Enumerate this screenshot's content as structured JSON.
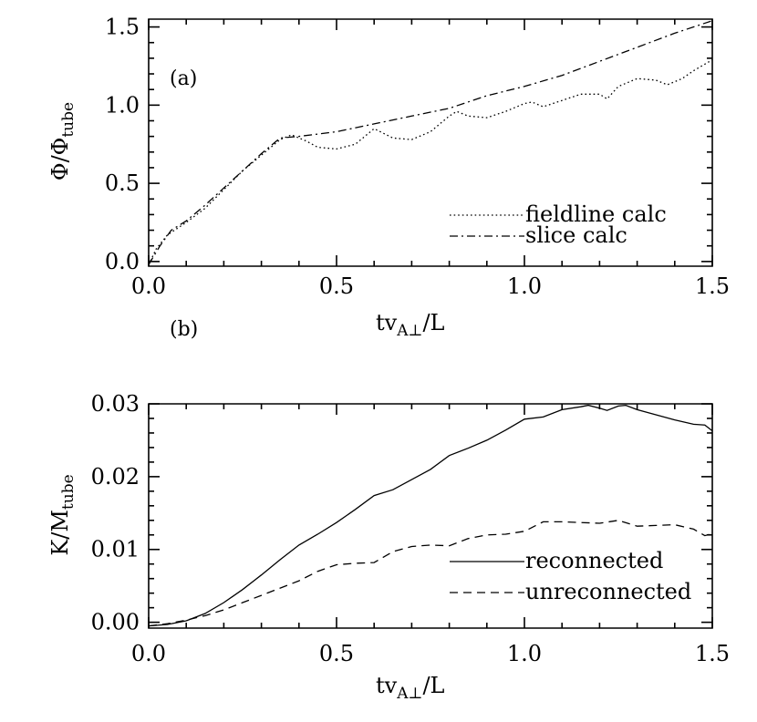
{
  "chart_data": [
    {
      "type": "line",
      "panel_label": "(a)",
      "xlabel": "tv",
      "xlabel_sub": "A⊥",
      "xlabel_tail": "/L",
      "ylabel": "Φ/Φ",
      "ylabel_sub": "tube",
      "xlim": [
        0,
        1.5
      ],
      "ylim": [
        -0.03,
        1.55
      ],
      "x_ticks": [
        "0.0",
        "0.5",
        "1.0",
        "1.5"
      ],
      "y_ticks": [
        "0.0",
        "0.5",
        "1.0",
        "1.5"
      ],
      "legend": "lower-right",
      "series": [
        {
          "name": "fieldline calc",
          "style": "dotted",
          "x": [
            0,
            0.02,
            0.05,
            0.1,
            0.15,
            0.2,
            0.25,
            0.3,
            0.35,
            0.38,
            0.42,
            0.45,
            0.5,
            0.55,
            0.6,
            0.65,
            0.7,
            0.75,
            0.8,
            0.82,
            0.85,
            0.9,
            0.95,
            1.0,
            1.02,
            1.05,
            1.1,
            1.15,
            1.2,
            1.22,
            1.25,
            1.3,
            1.35,
            1.38,
            1.42,
            1.45,
            1.5
          ],
          "y": [
            -0.02,
            0.08,
            0.17,
            0.25,
            0.34,
            0.46,
            0.58,
            0.68,
            0.78,
            0.81,
            0.77,
            0.73,
            0.72,
            0.75,
            0.85,
            0.79,
            0.78,
            0.83,
            0.93,
            0.96,
            0.93,
            0.92,
            0.96,
            1.01,
            1.02,
            0.99,
            1.03,
            1.07,
            1.07,
            1.04,
            1.12,
            1.17,
            1.16,
            1.13,
            1.17,
            1.22,
            1.29
          ]
        },
        {
          "name": "slice calc",
          "style": "dashdot",
          "x": [
            0,
            0.03,
            0.06,
            0.1,
            0.15,
            0.2,
            0.25,
            0.3,
            0.35,
            0.4,
            0.5,
            0.6,
            0.7,
            0.8,
            0.9,
            1.0,
            1.1,
            1.2,
            1.3,
            1.4,
            1.5
          ],
          "y": [
            -0.02,
            0.1,
            0.2,
            0.26,
            0.36,
            0.47,
            0.58,
            0.69,
            0.79,
            0.8,
            0.83,
            0.88,
            0.93,
            0.98,
            1.06,
            1.12,
            1.19,
            1.28,
            1.37,
            1.46,
            1.54
          ]
        }
      ]
    },
    {
      "type": "line",
      "panel_label": "(b)",
      "xlabel": "tv",
      "xlabel_sub": "A⊥",
      "xlabel_tail": "/L",
      "ylabel": "K/M",
      "ylabel_sub": "tube",
      "xlim": [
        0,
        1.5
      ],
      "ylim": [
        -0.0008,
        0.03
      ],
      "x_ticks": [
        "0.0",
        "0.5",
        "1.0",
        "1.5"
      ],
      "y_ticks": [
        "0.00",
        "0.01",
        "0.02",
        "0.03"
      ],
      "legend": "lower-right",
      "series": [
        {
          "name": "reconnected",
          "style": "solid",
          "x": [
            0,
            0.05,
            0.1,
            0.15,
            0.2,
            0.25,
            0.3,
            0.35,
            0.4,
            0.45,
            0.5,
            0.55,
            0.6,
            0.65,
            0.7,
            0.75,
            0.8,
            0.85,
            0.9,
            0.95,
            1.0,
            1.05,
            1.1,
            1.15,
            1.17,
            1.2,
            1.22,
            1.25,
            1.27,
            1.3,
            1.35,
            1.4,
            1.45,
            1.48,
            1.5
          ],
          "y": [
            -0.0005,
            -0.0003,
            0.0002,
            0.0012,
            0.0027,
            0.0045,
            0.0065,
            0.0086,
            0.0106,
            0.0121,
            0.0137,
            0.0155,
            0.0174,
            0.0182,
            0.0196,
            0.021,
            0.0229,
            0.0239,
            0.025,
            0.0264,
            0.0279,
            0.0282,
            0.0292,
            0.0296,
            0.0298,
            0.0294,
            0.0291,
            0.0297,
            0.0298,
            0.0292,
            0.0285,
            0.0278,
            0.0272,
            0.0271,
            0.0263
          ]
        },
        {
          "name": "unreconnected",
          "style": "dashed",
          "x": [
            0,
            0.05,
            0.1,
            0.15,
            0.2,
            0.25,
            0.3,
            0.35,
            0.4,
            0.45,
            0.5,
            0.55,
            0.6,
            0.65,
            0.7,
            0.75,
            0.8,
            0.85,
            0.9,
            0.95,
            1.0,
            1.05,
            1.1,
            1.15,
            1.2,
            1.25,
            1.3,
            1.35,
            1.4,
            1.45,
            1.48,
            1.5
          ],
          "y": [
            -0.0005,
            -0.0002,
            0.0003,
            0.0009,
            0.0017,
            0.0027,
            0.0037,
            0.0047,
            0.0057,
            0.007,
            0.0079,
            0.0081,
            0.0082,
            0.0097,
            0.0104,
            0.0106,
            0.0105,
            0.0115,
            0.012,
            0.0121,
            0.0125,
            0.0138,
            0.0138,
            0.0137,
            0.0136,
            0.014,
            0.0132,
            0.0133,
            0.0134,
            0.0128,
            0.0119,
            0.0122
          ]
        }
      ]
    }
  ]
}
